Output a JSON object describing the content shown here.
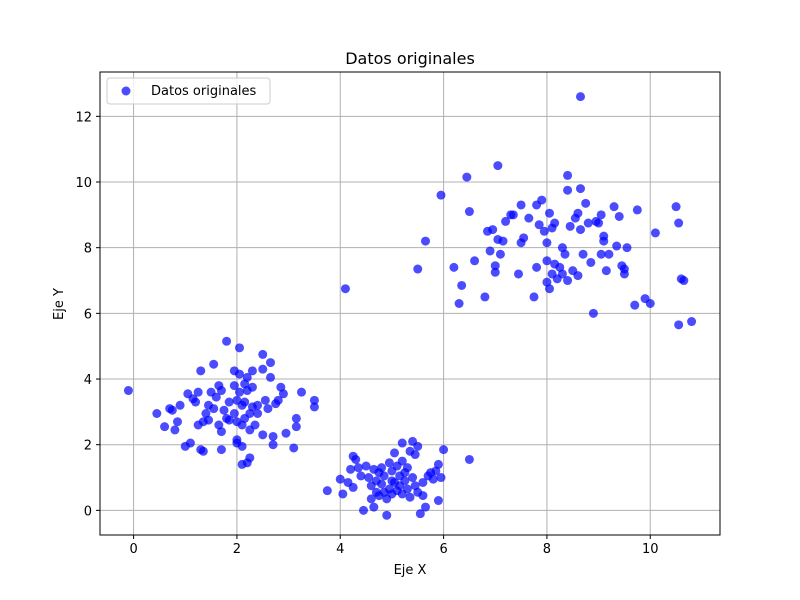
{
  "chart_data": {
    "type": "scatter",
    "title": "Datos originales",
    "xlabel": "Eje X",
    "ylabel": "Eje Y",
    "xlim": [
      -0.65,
      11.35
    ],
    "ylim": [
      -0.75,
      13.35
    ],
    "xticks": [
      0,
      2,
      4,
      6,
      8,
      10
    ],
    "yticks": [
      0,
      2,
      4,
      6,
      8,
      10,
      12
    ],
    "grid": true,
    "legend_position": "top-left",
    "color": "#0000ff",
    "opacity": 0.7,
    "series": [
      {
        "name": "Datos originales",
        "points": [
          [
            -0.1,
            3.65
          ],
          [
            0.45,
            2.95
          ],
          [
            0.6,
            2.55
          ],
          [
            0.7,
            3.1
          ],
          [
            0.8,
            2.45
          ],
          [
            0.85,
            2.7
          ],
          [
            0.75,
            3.05
          ],
          [
            0.9,
            3.2
          ],
          [
            1.0,
            1.95
          ],
          [
            1.05,
            3.55
          ],
          [
            1.1,
            2.05
          ],
          [
            1.15,
            3.4
          ],
          [
            1.2,
            3.3
          ],
          [
            1.25,
            3.6
          ],
          [
            1.25,
            2.6
          ],
          [
            1.3,
            1.85
          ],
          [
            1.35,
            1.8
          ],
          [
            1.3,
            4.25
          ],
          [
            1.35,
            2.7
          ],
          [
            1.4,
            2.95
          ],
          [
            1.45,
            3.2
          ],
          [
            1.45,
            2.75
          ],
          [
            1.5,
            3.6
          ],
          [
            1.55,
            4.45
          ],
          [
            1.55,
            3.1
          ],
          [
            1.6,
            3.45
          ],
          [
            1.65,
            3.8
          ],
          [
            1.65,
            2.6
          ],
          [
            1.7,
            3.65
          ],
          [
            1.7,
            2.4
          ],
          [
            1.7,
            1.85
          ],
          [
            1.75,
            3.05
          ],
          [
            1.8,
            2.8
          ],
          [
            1.8,
            5.15
          ],
          [
            1.85,
            3.3
          ],
          [
            1.85,
            2.75
          ],
          [
            1.95,
            4.25
          ],
          [
            1.95,
            3.8
          ],
          [
            1.95,
            2.95
          ],
          [
            2.0,
            3.35
          ],
          [
            2.0,
            2.7
          ],
          [
            2.0,
            2.15
          ],
          [
            2.0,
            2.05
          ],
          [
            2.05,
            4.95
          ],
          [
            2.05,
            4.15
          ],
          [
            2.05,
            3.6
          ],
          [
            2.1,
            3.2
          ],
          [
            2.1,
            2.6
          ],
          [
            2.1,
            1.95
          ],
          [
            2.1,
            1.4
          ],
          [
            2.15,
            3.85
          ],
          [
            2.15,
            3.3
          ],
          [
            2.15,
            2.8
          ],
          [
            2.2,
            4.05
          ],
          [
            2.2,
            3.65
          ],
          [
            2.2,
            1.45
          ],
          [
            2.25,
            2.95
          ],
          [
            2.25,
            2.45
          ],
          [
            2.25,
            1.6
          ],
          [
            2.3,
            4.25
          ],
          [
            2.3,
            3.75
          ],
          [
            2.3,
            3.15
          ],
          [
            2.35,
            2.6
          ],
          [
            2.4,
            3.2
          ],
          [
            2.4,
            2.95
          ],
          [
            2.5,
            4.75
          ],
          [
            2.5,
            4.3
          ],
          [
            2.5,
            2.3
          ],
          [
            2.55,
            3.35
          ],
          [
            2.6,
            3.1
          ],
          [
            2.65,
            4.5
          ],
          [
            2.65,
            4.05
          ],
          [
            2.7,
            2.0
          ],
          [
            2.7,
            2.25
          ],
          [
            2.75,
            3.25
          ],
          [
            2.8,
            3.35
          ],
          [
            2.85,
            3.75
          ],
          [
            2.9,
            3.55
          ],
          [
            2.95,
            2.35
          ],
          [
            3.1,
            1.9
          ],
          [
            3.15,
            2.8
          ],
          [
            3.15,
            2.55
          ],
          [
            3.25,
            3.6
          ],
          [
            3.5,
            3.35
          ],
          [
            3.5,
            3.15
          ],
          [
            3.75,
            0.6
          ],
          [
            4.0,
            0.95
          ],
          [
            4.05,
            0.5
          ],
          [
            4.15,
            0.85
          ],
          [
            4.2,
            1.25
          ],
          [
            4.25,
            1.65
          ],
          [
            4.25,
            0.7
          ],
          [
            4.3,
            1.55
          ],
          [
            4.35,
            1.3
          ],
          [
            4.4,
            1.05
          ],
          [
            4.45,
            0.0
          ],
          [
            4.5,
            1.35
          ],
          [
            4.55,
            1.0
          ],
          [
            4.6,
            0.75
          ],
          [
            4.6,
            0.35
          ],
          [
            4.65,
            1.25
          ],
          [
            4.65,
            0.1
          ],
          [
            4.7,
            0.9
          ],
          [
            4.7,
            0.55
          ],
          [
            4.75,
            1.15
          ],
          [
            4.75,
            0.45
          ],
          [
            4.8,
            1.3
          ],
          [
            4.8,
            0.8
          ],
          [
            4.85,
            1.05
          ],
          [
            4.85,
            0.55
          ],
          [
            4.9,
            -0.15
          ],
          [
            4.9,
            0.35
          ],
          [
            4.95,
            1.45
          ],
          [
            4.95,
            0.65
          ],
          [
            5.0,
            1.2
          ],
          [
            5.0,
            0.9
          ],
          [
            5.0,
            0.5
          ],
          [
            5.05,
            1.75
          ],
          [
            5.05,
            0.85
          ],
          [
            5.1,
            1.35
          ],
          [
            5.1,
            0.6
          ],
          [
            5.15,
            1.05
          ],
          [
            5.15,
            0.75
          ],
          [
            5.2,
            2.05
          ],
          [
            5.2,
            1.5
          ],
          [
            5.2,
            0.5
          ],
          [
            5.25,
            1.15
          ],
          [
            5.25,
            0.9
          ],
          [
            5.3,
            1.3
          ],
          [
            5.3,
            0.65
          ],
          [
            5.35,
            1.8
          ],
          [
            5.35,
            0.4
          ],
          [
            5.4,
            2.1
          ],
          [
            5.4,
            1.0
          ],
          [
            5.45,
            0.75
          ],
          [
            5.45,
            1.7
          ],
          [
            5.5,
            1.95
          ],
          [
            5.5,
            0.55
          ],
          [
            5.55,
            -0.1
          ],
          [
            5.6,
            0.85
          ],
          [
            5.6,
            0.45
          ],
          [
            5.65,
            0.1
          ],
          [
            5.7,
            1.05
          ],
          [
            5.75,
            1.15
          ],
          [
            5.8,
            0.95
          ],
          [
            5.85,
            1.2
          ],
          [
            5.9,
            1.4
          ],
          [
            5.9,
            0.3
          ],
          [
            5.95,
            1.0
          ],
          [
            6.0,
            1.85
          ],
          [
            6.5,
            1.55
          ],
          [
            4.1,
            6.75
          ],
          [
            5.5,
            7.35
          ],
          [
            5.65,
            8.2
          ],
          [
            5.95,
            9.6
          ],
          [
            6.2,
            7.4
          ],
          [
            6.3,
            6.3
          ],
          [
            6.35,
            6.85
          ],
          [
            6.45,
            10.15
          ],
          [
            6.5,
            9.1
          ],
          [
            6.6,
            7.6
          ],
          [
            6.8,
            6.5
          ],
          [
            6.85,
            8.5
          ],
          [
            6.9,
            7.9
          ],
          [
            6.95,
            8.55
          ],
          [
            7.0,
            7.45
          ],
          [
            7.0,
            7.25
          ],
          [
            7.05,
            8.25
          ],
          [
            7.05,
            10.5
          ],
          [
            7.1,
            7.8
          ],
          [
            7.15,
            8.2
          ],
          [
            7.2,
            8.8
          ],
          [
            7.3,
            9.0
          ],
          [
            7.35,
            9.0
          ],
          [
            7.45,
            7.2
          ],
          [
            7.5,
            9.3
          ],
          [
            7.5,
            8.15
          ],
          [
            7.55,
            8.3
          ],
          [
            7.65,
            8.9
          ],
          [
            7.75,
            6.5
          ],
          [
            7.8,
            7.4
          ],
          [
            7.8,
            9.3
          ],
          [
            7.85,
            8.7
          ],
          [
            7.9,
            9.45
          ],
          [
            7.95,
            8.5
          ],
          [
            8.0,
            8.15
          ],
          [
            8.0,
            7.6
          ],
          [
            8.0,
            6.95
          ],
          [
            8.05,
            6.75
          ],
          [
            8.05,
            9.05
          ],
          [
            8.1,
            8.6
          ],
          [
            8.1,
            7.2
          ],
          [
            8.15,
            8.75
          ],
          [
            8.15,
            7.5
          ],
          [
            8.2,
            7.05
          ],
          [
            8.25,
            7.4
          ],
          [
            8.3,
            8.0
          ],
          [
            8.3,
            7.2
          ],
          [
            8.35,
            7.8
          ],
          [
            8.4,
            10.2
          ],
          [
            8.4,
            9.75
          ],
          [
            8.4,
            7.0
          ],
          [
            8.45,
            8.65
          ],
          [
            8.5,
            7.3
          ],
          [
            8.55,
            8.9
          ],
          [
            8.6,
            9.05
          ],
          [
            8.6,
            7.15
          ],
          [
            8.65,
            12.6
          ],
          [
            8.65,
            9.8
          ],
          [
            8.65,
            8.55
          ],
          [
            8.7,
            7.8
          ],
          [
            8.75,
            9.35
          ],
          [
            8.8,
            8.75
          ],
          [
            8.85,
            7.55
          ],
          [
            8.9,
            6.0
          ],
          [
            8.95,
            8.8
          ],
          [
            9.0,
            8.75
          ],
          [
            9.05,
            9.0
          ],
          [
            9.05,
            7.8
          ],
          [
            9.1,
            8.2
          ],
          [
            9.1,
            8.35
          ],
          [
            9.15,
            7.3
          ],
          [
            9.2,
            7.8
          ],
          [
            9.3,
            9.25
          ],
          [
            9.35,
            8.05
          ],
          [
            9.4,
            8.95
          ],
          [
            9.45,
            7.45
          ],
          [
            9.5,
            7.2
          ],
          [
            9.5,
            7.35
          ],
          [
            9.55,
            8.0
          ],
          [
            9.7,
            6.25
          ],
          [
            9.75,
            9.15
          ],
          [
            9.9,
            6.45
          ],
          [
            10.0,
            6.3
          ],
          [
            10.1,
            8.45
          ],
          [
            10.5,
            9.25
          ],
          [
            10.55,
            8.75
          ],
          [
            10.55,
            5.65
          ],
          [
            10.6,
            7.05
          ],
          [
            10.65,
            7.0
          ],
          [
            10.8,
            5.75
          ]
        ]
      }
    ]
  }
}
